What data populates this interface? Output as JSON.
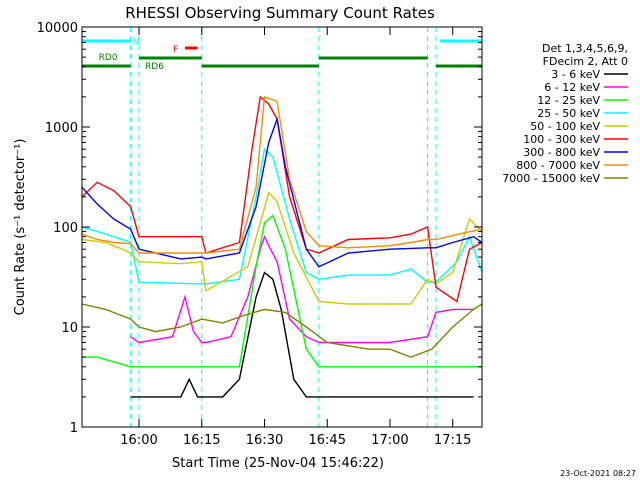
{
  "chart_data": {
    "type": "line",
    "title": "RHESSI Observing Summary Count Rates",
    "xlabel": "Start Time (25-Nov-04 15:46:22)",
    "ylabel": "Count Rate (s⁻¹ detector⁻¹)",
    "footer": "23-Oct-2021 08:27",
    "yscale": "log",
    "ylim": [
      1,
      10000
    ],
    "xlim": [
      "15:46:22",
      "17:22:00"
    ],
    "x_ticks": [
      "16:00",
      "16:15",
      "16:30",
      "16:45",
      "17:00",
      "17:15"
    ],
    "y_ticks": [
      "1",
      "10",
      "100",
      "1000",
      "10000"
    ],
    "legend_header": [
      "Det 1,3,4,5,6,9,",
      "FDecim 2, Att 0"
    ],
    "legend_position": "right",
    "flags": [
      {
        "label": "N",
        "color": "#00ffff",
        "spans": [
          [
            "15:46:22",
            "15:58:00"
          ],
          [
            "17:12:00",
            "17:22:00"
          ]
        ]
      },
      {
        "label": "F",
        "color": "#ff0000",
        "spans": [
          [
            "16:11:00",
            "16:14:00"
          ]
        ]
      },
      {
        "label": "RD0",
        "color": "#008000",
        "spans": [
          [
            "15:46:22",
            "15:58:00"
          ],
          [
            "16:15:00",
            "16:43:00"
          ],
          [
            "17:11:00",
            "17:22:00"
          ]
        ]
      },
      {
        "label": "RD6",
        "color": "#008000",
        "spans": [
          [
            "16:00:00",
            "16:15:00"
          ],
          [
            "16:43:00",
            "17:09:00"
          ]
        ]
      }
    ],
    "night_boundaries": [
      "15:58:00",
      "16:00:00",
      "16:15:00",
      "16:43:00",
      "17:09:00",
      "17:11:00",
      "17:22:00"
    ],
    "series": [
      {
        "name": "3 - 6 keV",
        "color": "#000000",
        "x": [
          "15:58:00",
          "16:00:00",
          "16:10:00",
          "16:12:00",
          "16:14:00",
          "16:20:00",
          "16:24:00",
          "16:28:00",
          "16:30:00",
          "16:32:00",
          "16:34:00",
          "16:37:00",
          "16:40:00",
          "16:46:00",
          "17:00:00",
          "17:10:00",
          "17:15:00",
          "17:20:00"
        ],
        "y": [
          2,
          2,
          2,
          3,
          2,
          2,
          3,
          20,
          35,
          30,
          15,
          3,
          2,
          2,
          2,
          2,
          2,
          2
        ]
      },
      {
        "name": "6 - 12 keV",
        "color": "#ff00ff",
        "x": [
          "15:58:00",
          "16:00:00",
          "16:08:00",
          "16:11:00",
          "16:13:00",
          "16:15:00",
          "16:16:00",
          "16:22:00",
          "16:26:00",
          "16:29:00",
          "16:30:00",
          "16:31:00",
          "16:33:00",
          "16:36:00",
          "16:40:00",
          "16:43:00",
          "17:00:00",
          "17:09:00",
          "17:11:00",
          "17:15:00",
          "17:20:00"
        ],
        "y": [
          8,
          7,
          8,
          20,
          9,
          7,
          7,
          8,
          20,
          60,
          80,
          65,
          45,
          12,
          8,
          7,
          7,
          8,
          14,
          15,
          15
        ]
      },
      {
        "name": "12 - 25 keV",
        "color": "#00ff00",
        "x": [
          "15:46:22",
          "15:50:00",
          "15:58:00",
          "16:00:00",
          "16:10:00",
          "16:15:00",
          "16:16:00",
          "16:24:00",
          "16:28:00",
          "16:30:00",
          "16:32:00",
          "16:35:00",
          "16:40:00",
          "16:43:00",
          "17:00:00",
          "17:09:00",
          "17:11:00",
          "17:18:00",
          "17:22:00"
        ],
        "y": [
          5,
          5,
          4,
          4,
          4,
          4,
          4,
          4,
          40,
          110,
          130,
          60,
          6,
          4,
          4,
          4,
          4,
          4,
          4
        ]
      },
      {
        "name": "25 - 50 keV",
        "color": "#00ffff",
        "x": [
          "15:46:22",
          "15:52:00",
          "15:56:00",
          "15:58:00",
          "16:00:00",
          "16:15:00",
          "16:16:00",
          "16:24:00",
          "16:28:00",
          "16:30:00",
          "16:32:00",
          "16:36:00",
          "16:40:00",
          "16:43:00",
          "16:50:00",
          "17:00:00",
          "17:05:00",
          "17:09:00",
          "17:11:00",
          "17:16:00",
          "17:19:00",
          "17:22:00"
        ],
        "y": [
          100,
          85,
          75,
          70,
          28,
          27,
          27,
          30,
          200,
          600,
          500,
          120,
          35,
          30,
          33,
          33,
          38,
          28,
          28,
          45,
          80,
          35
        ]
      },
      {
        "name": "50 - 100 keV",
        "color": "#cccc00",
        "x": [
          "15:46:22",
          "15:52:00",
          "15:56:00",
          "15:58:00",
          "16:00:00",
          "16:10:00",
          "16:15:00",
          "16:16:00",
          "16:26:00",
          "16:29:00",
          "16:31:00",
          "16:33:00",
          "16:37:00",
          "16:43:00",
          "16:50:00",
          "17:00:00",
          "17:05:00",
          "17:09:00",
          "17:11:00",
          "17:15:00",
          "17:19:00",
          "17:22:00"
        ],
        "y": [
          75,
          70,
          60,
          55,
          45,
          43,
          45,
          23,
          40,
          110,
          220,
          180,
          55,
          18,
          17,
          17,
          17,
          30,
          27,
          35,
          120,
          90
        ]
      },
      {
        "name": "100 - 300 keV",
        "color": "#ff0000",
        "x": [
          "15:46:22",
          "15:50:00",
          "15:54:00",
          "15:58:00",
          "16:00:00",
          "16:10:00",
          "16:15:00",
          "16:16:00",
          "16:24:00",
          "16:27:00",
          "16:29:00",
          "16:31:00",
          "16:33:00",
          "16:36:00",
          "16:40:00",
          "16:43:00",
          "16:50:00",
          "17:00:00",
          "17:05:00",
          "17:09:00",
          "17:11:00",
          "17:16:00",
          "17:19:00",
          "17:22:00"
        ],
        "y": [
          200,
          280,
          230,
          160,
          80,
          80,
          80,
          55,
          70,
          600,
          2000,
          1700,
          1200,
          200,
          60,
          55,
          75,
          78,
          85,
          100,
          25,
          18,
          60,
          70
        ]
      },
      {
        "name": "300 - 800 keV",
        "color": "#0000ff",
        "x": [
          "15:46:22",
          "15:50:00",
          "15:54:00",
          "15:58:00",
          "16:00:00",
          "16:10:00",
          "16:15:00",
          "16:16:00",
          "16:24:00",
          "16:28:00",
          "16:31:00",
          "16:33:00",
          "16:35:00",
          "16:40:00",
          "16:43:00",
          "16:50:00",
          "17:00:00",
          "17:09:00",
          "17:11:00",
          "17:15:00",
          "17:20:00",
          "17:22:00"
        ],
        "y": [
          250,
          170,
          120,
          95,
          60,
          48,
          50,
          48,
          55,
          160,
          700,
          1200,
          400,
          60,
          40,
          55,
          60,
          62,
          62,
          70,
          80,
          70
        ]
      },
      {
        "name": "800 - 7000 keV",
        "color": "#ff8c00",
        "x": [
          "15:46:22",
          "15:50:00",
          "15:54:00",
          "15:58:00",
          "16:00:00",
          "16:10:00",
          "16:15:00",
          "16:16:00",
          "16:24:00",
          "16:28:00",
          "16:30:00",
          "16:33:00",
          "16:36:00",
          "16:40:00",
          "16:43:00",
          "16:50:00",
          "17:00:00",
          "17:05:00",
          "17:09:00",
          "17:11:00",
          "17:18:00",
          "17:22:00"
        ],
        "y": [
          85,
          75,
          70,
          68,
          55,
          55,
          55,
          55,
          60,
          250,
          2000,
          1800,
          300,
          90,
          65,
          62,
          65,
          70,
          75,
          75,
          88,
          95
        ]
      },
      {
        "name": "7000 - 15000 keV",
        "color": "#808000",
        "x": [
          "15:46:22",
          "15:52:00",
          "15:58:00",
          "16:00:00",
          "16:04:00",
          "16:10:00",
          "16:15:00",
          "16:20:00",
          "16:25:00",
          "16:30:00",
          "16:35:00",
          "16:40:00",
          "16:45:00",
          "16:55:00",
          "17:00:00",
          "17:05:00",
          "17:10:00",
          "17:15:00",
          "17:20:00",
          "17:22:00"
        ],
        "y": [
          17,
          15,
          12,
          10,
          9,
          10,
          12,
          11,
          13,
          15,
          14,
          10,
          7,
          6,
          6,
          5,
          6,
          10,
          15,
          17
        ]
      }
    ]
  }
}
